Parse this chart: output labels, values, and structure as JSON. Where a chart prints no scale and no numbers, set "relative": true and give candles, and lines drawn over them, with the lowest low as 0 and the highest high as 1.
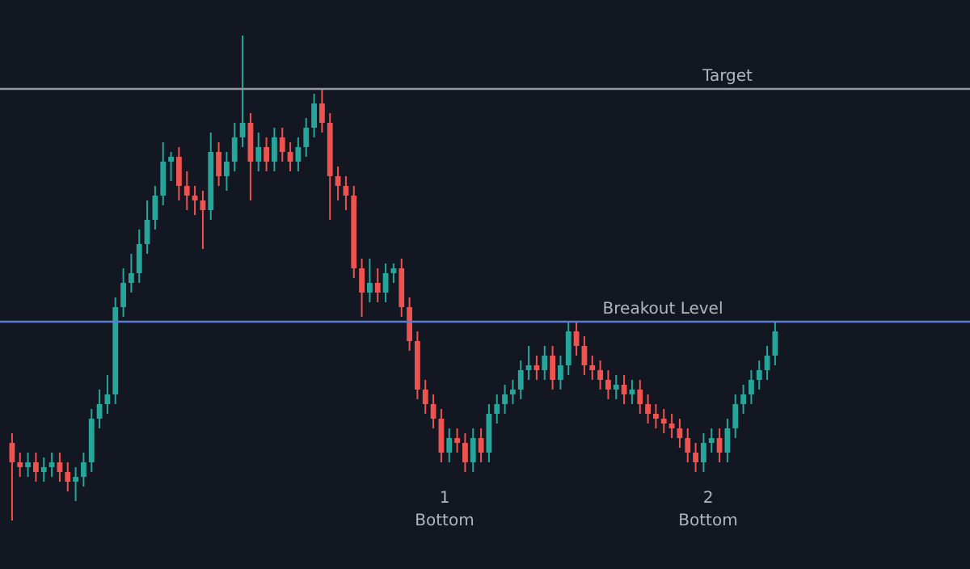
{
  "chart_data": {
    "type": "candlestick",
    "relative": true,
    "colors": [
      "#ef5350",
      "#ef5350",
      "#26a69a",
      "#ef5350",
      "#26a69a",
      "#26a69a",
      "#ef5350",
      "#ef5350",
      "#26a69a",
      "#26a69a",
      "#26a69a",
      "#26a69a",
      "#26a69a",
      "#26a69a",
      "#26a69a",
      "#26a69a",
      "#26a69a",
      "#26a69a",
      "#26a69a",
      "#26a69a",
      "#26a69a",
      "#ef5350",
      "#ef5350",
      "#ef5350",
      "#ef5350",
      "#26a69a",
      "#ef5350",
      "#26a69a",
      "#26a69a",
      "#26a69a",
      "#ef5350",
      "#26a69a",
      "#ef5350",
      "#26a69a",
      "#ef5350",
      "#ef5350",
      "#26a69a",
      "#26a69a",
      "#26a69a",
      "#ef5350",
      "#ef5350",
      "#ef5350",
      "#ef5350",
      "#ef5350",
      "#ef5350",
      "#26a69a",
      "#ef5350",
      "#26a69a",
      "#26a69a",
      "#ef5350",
      "#ef5350",
      "#ef5350",
      "#ef5350",
      "#ef5350",
      "#ef5350",
      "#26a69a",
      "#ef5350",
      "#ef5350",
      "#26a69a",
      "#ef5350",
      "#26a69a",
      "#26a69a",
      "#26a69a",
      "#26a69a",
      "#26a69a",
      "#26a69a",
      "#ef5350",
      "#26a69a",
      "#ef5350",
      "#26a69a",
      "#26a69a",
      "#ef5350",
      "#ef5350",
      "#ef5350",
      "#ef5350",
      "#ef5350",
      "#26a69a",
      "#ef5350",
      "#26a69a",
      "#ef5350",
      "#ef5350",
      "#ef5350",
      "#ef5350",
      "#ef5350",
      "#ef5350",
      "#ef5350",
      "#ef5350",
      "#26a69a",
      "#26a69a",
      "#ef5350",
      "#26a69a",
      "#26a69a",
      "#26a69a",
      "#26a69a",
      "#26a69a",
      "#26a69a",
      "#26a69a"
    ],
    "categories": [
      null,
      null,
      null,
      null,
      null,
      null,
      null,
      null,
      null,
      null,
      null,
      null,
      null,
      null,
      null,
      null,
      null,
      null,
      null,
      null,
      null,
      null,
      null,
      null,
      null,
      null,
      null,
      null,
      null,
      null,
      null,
      null,
      null,
      null,
      null,
      null,
      null,
      null,
      null,
      null,
      null,
      null,
      null,
      null,
      null,
      null,
      null,
      null,
      null,
      null,
      null,
      null,
      null,
      null,
      null,
      null,
      null,
      null,
      null,
      null,
      null,
      null,
      null,
      null,
      null,
      null,
      null,
      null,
      null,
      null,
      null,
      null,
      null,
      null,
      null,
      null,
      null,
      null,
      null,
      null,
      null,
      null,
      null,
      null,
      null,
      null,
      null,
      null,
      null,
      null,
      null,
      null,
      null,
      null,
      null,
      null,
      null
    ],
    "ohlc": [
      [
        0.16,
        0.18,
        0,
        0.12
      ],
      [
        0.12,
        0.14,
        0.09,
        0.11
      ],
      [
        0.11,
        0.14,
        0.09,
        0.12
      ],
      [
        0.12,
        0.14,
        0.08,
        0.1
      ],
      [
        0.1,
        0.13,
        0.08,
        0.11
      ],
      [
        0.11,
        0.14,
        0.09,
        0.12
      ],
      [
        0.12,
        0.14,
        0.08,
        0.1
      ],
      [
        0.1,
        0.12,
        0.06,
        0.08
      ],
      [
        0.08,
        0.11,
        0.04,
        0.09
      ],
      [
        0.09,
        0.14,
        0.07,
        0.12
      ],
      [
        0.12,
        0.23,
        0.1,
        0.21
      ],
      [
        0.21,
        0.27,
        0.19,
        0.24
      ],
      [
        0.24,
        0.3,
        0.22,
        0.26
      ],
      [
        0.26,
        0.46,
        0.24,
        0.44
      ],
      [
        0.44,
        0.52,
        0.42,
        0.49
      ],
      [
        0.49,
        0.55,
        0.47,
        0.51
      ],
      [
        0.51,
        0.6,
        0.49,
        0.57
      ],
      [
        0.57,
        0.66,
        0.55,
        0.62
      ],
      [
        0.62,
        0.69,
        0.6,
        0.67
      ],
      [
        0.67,
        0.78,
        0.65,
        0.74
      ],
      [
        0.74,
        0.76,
        0.7,
        0.75
      ],
      [
        0.75,
        0.77,
        0.66,
        0.69
      ],
      [
        0.69,
        0.72,
        0.64,
        0.67
      ],
      [
        0.67,
        0.69,
        0.63,
        0.66
      ],
      [
        0.66,
        0.68,
        0.56,
        0.64
      ],
      [
        0.64,
        0.8,
        0.62,
        0.76
      ],
      [
        0.76,
        0.78,
        0.69,
        0.71
      ],
      [
        0.71,
        0.76,
        0.68,
        0.74
      ],
      [
        0.74,
        0.82,
        0.72,
        0.79
      ],
      [
        0.79,
        1,
        0.77,
        0.82
      ],
      [
        0.82,
        0.84,
        0.66,
        0.74
      ],
      [
        0.74,
        0.8,
        0.72,
        0.77
      ],
      [
        0.77,
        0.79,
        0.72,
        0.74
      ],
      [
        0.74,
        0.81,
        0.72,
        0.79
      ],
      [
        0.79,
        0.81,
        0.74,
        0.76
      ],
      [
        0.76,
        0.78,
        0.72,
        0.74
      ],
      [
        0.74,
        0.79,
        0.72,
        0.77
      ],
      [
        0.77,
        0.83,
        0.75,
        0.81
      ],
      [
        0.81,
        0.88,
        0.79,
        0.86
      ],
      [
        0.86,
        0.89,
        0.8,
        0.82
      ],
      [
        0.82,
        0.84,
        0.62,
        0.71
      ],
      [
        0.71,
        0.73,
        0.66,
        0.69
      ],
      [
        0.69,
        0.71,
        0.64,
        0.67
      ],
      [
        0.67,
        0.69,
        0.5,
        0.52
      ],
      [
        0.52,
        0.54,
        0.42,
        0.47
      ],
      [
        0.47,
        0.54,
        0.45,
        0.49
      ],
      [
        0.49,
        0.52,
        0.45,
        0.47
      ],
      [
        0.47,
        0.53,
        0.45,
        0.51
      ],
      [
        0.51,
        0.53,
        0.49,
        0.52
      ],
      [
        0.52,
        0.54,
        0.42,
        0.44
      ],
      [
        0.44,
        0.46,
        0.35,
        0.37
      ],
      [
        0.37,
        0.39,
        0.25,
        0.27
      ],
      [
        0.27,
        0.29,
        0.22,
        0.24
      ],
      [
        0.24,
        0.26,
        0.19,
        0.21
      ],
      [
        0.21,
        0.23,
        0.12,
        0.14
      ],
      [
        0.14,
        0.19,
        0.12,
        0.17
      ],
      [
        0.17,
        0.19,
        0.14,
        0.16
      ],
      [
        0.16,
        0.18,
        0.1,
        0.12
      ],
      [
        0.12,
        0.19,
        0.1,
        0.17
      ],
      [
        0.17,
        0.19,
        0.12,
        0.14
      ],
      [
        0.14,
        0.24,
        0.12,
        0.22
      ],
      [
        0.22,
        0.26,
        0.2,
        0.24
      ],
      [
        0.24,
        0.28,
        0.22,
        0.26
      ],
      [
        0.26,
        0.29,
        0.24,
        0.27
      ],
      [
        0.27,
        0.33,
        0.25,
        0.31
      ],
      [
        0.31,
        0.36,
        0.29,
        0.32
      ],
      [
        0.32,
        0.34,
        0.29,
        0.31
      ],
      [
        0.31,
        0.36,
        0.29,
        0.34
      ],
      [
        0.34,
        0.36,
        0.27,
        0.29
      ],
      [
        0.29,
        0.34,
        0.27,
        0.32
      ],
      [
        0.32,
        0.41,
        0.3,
        0.39
      ],
      [
        0.39,
        0.41,
        0.34,
        0.36
      ],
      [
        0.36,
        0.38,
        0.3,
        0.32
      ],
      [
        0.32,
        0.34,
        0.29,
        0.31
      ],
      [
        0.31,
        0.33,
        0.27,
        0.29
      ],
      [
        0.29,
        0.31,
        0.25,
        0.27
      ],
      [
        0.27,
        0.3,
        0.25,
        0.28
      ],
      [
        0.28,
        0.3,
        0.24,
        0.26
      ],
      [
        0.26,
        0.29,
        0.24,
        0.27
      ],
      [
        0.27,
        0.29,
        0.22,
        0.24
      ],
      [
        0.24,
        0.26,
        0.2,
        0.22
      ],
      [
        0.22,
        0.24,
        0.19,
        0.21
      ],
      [
        0.21,
        0.23,
        0.18,
        0.2
      ],
      [
        0.2,
        0.22,
        0.17,
        0.19
      ],
      [
        0.19,
        0.21,
        0.15,
        0.17
      ],
      [
        0.17,
        0.19,
        0.12,
        0.14
      ],
      [
        0.14,
        0.16,
        0.1,
        0.12
      ],
      [
        0.12,
        0.18,
        0.1,
        0.16
      ],
      [
        0.16,
        0.19,
        0.14,
        0.17
      ],
      [
        0.17,
        0.19,
        0.12,
        0.14
      ],
      [
        0.14,
        0.21,
        0.12,
        0.19
      ],
      [
        0.19,
        0.26,
        0.17,
        0.24
      ],
      [
        0.24,
        0.28,
        0.22,
        0.26
      ],
      [
        0.26,
        0.31,
        0.24,
        0.29
      ],
      [
        0.29,
        0.33,
        0.27,
        0.31
      ],
      [
        0.31,
        0.36,
        0.29,
        0.34
      ],
      [
        0.34,
        0.41,
        0.32,
        0.39
      ]
    ],
    "ref_lines": [
      {
        "axis": "y",
        "value": 0.89,
        "label": "Target",
        "color": "#9598a1"
      },
      {
        "axis": "y",
        "value": 0.41,
        "label": "Breakout Level",
        "color": "#5b7bd5"
      }
    ],
    "annotations": [
      "1",
      "Bottom",
      "2",
      "Bottom"
    ]
  }
}
